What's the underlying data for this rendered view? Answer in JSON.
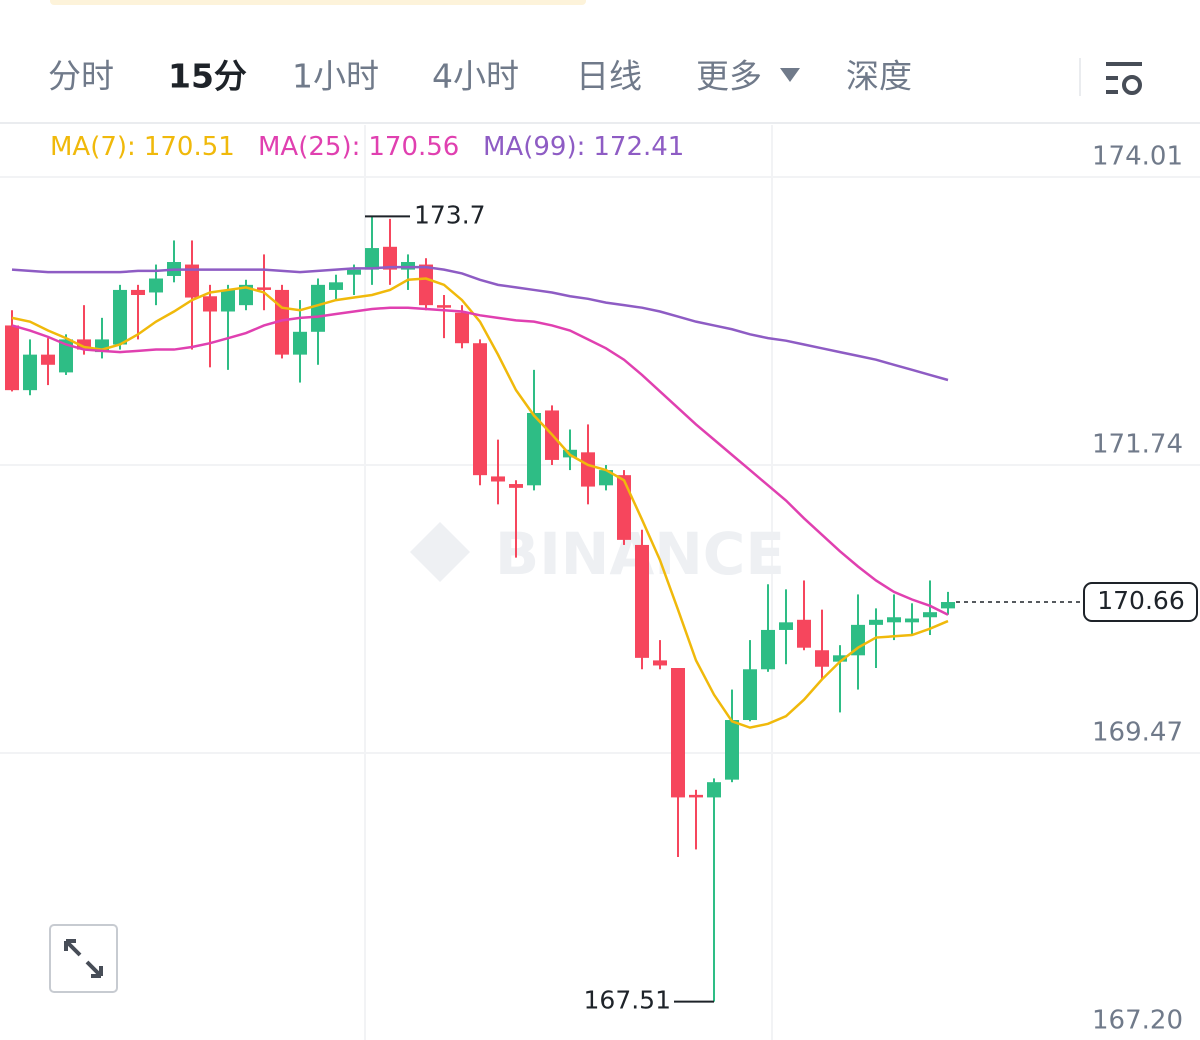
{
  "tabs": [
    "分时",
    "15分",
    "1小时",
    "4小时",
    "日线",
    "更多",
    "深度"
  ],
  "watermark": "BINANCE",
  "chart_data": {
    "type": "candlestick",
    "up_color": "#2ebd85",
    "down_color": "#f6465d",
    "ylim": [
      167.2,
      174.42
    ],
    "yticks": [
      174.01,
      171.74,
      169.47,
      {
        "value": 167.2,
        "label": "167.20"
      }
    ],
    "grid": true,
    "open": [
      172.84,
      172.33,
      172.61,
      172.47,
      172.73,
      172.63,
      172.69,
      173.12,
      173.1,
      173.23,
      173.32,
      173.07,
      172.95,
      173.0,
      173.14,
      173.12,
      172.61,
      172.79,
      173.12,
      173.24,
      173.28,
      173.46,
      173.28,
      173.32,
      173.0,
      172.94,
      172.7,
      171.65,
      171.59,
      171.58,
      172.17,
      171.8,
      171.84,
      171.58,
      171.66,
      171.11,
      170.2,
      170.14,
      169.14,
      169.12,
      169.26,
      169.73,
      170.13,
      170.44,
      170.52,
      170.28,
      170.19,
      170.24,
      170.48,
      170.5,
      170.5,
      170.54,
      170.61
    ],
    "high": [
      172.96,
      172.73,
      172.74,
      172.77,
      173.0,
      172.9,
      173.16,
      173.16,
      173.32,
      173.51,
      173.51,
      173.16,
      173.16,
      173.2,
      173.4,
      173.16,
      173.04,
      173.21,
      173.24,
      173.32,
      173.7,
      173.68,
      173.4,
      173.37,
      173.08,
      173.0,
      172.73,
      171.94,
      171.62,
      172.49,
      172.21,
      172.02,
      172.06,
      171.74,
      171.7,
      171.23,
      170.36,
      170.14,
      169.18,
      169.27,
      169.97,
      170.36,
      170.8,
      170.76,
      170.83,
      170.6,
      170.32,
      170.72,
      170.61,
      170.72,
      170.65,
      170.83,
      170.74
    ],
    "low": [
      172.32,
      172.29,
      172.37,
      172.45,
      172.61,
      172.58,
      172.65,
      172.73,
      173.0,
      173.18,
      172.65,
      172.51,
      172.49,
      172.96,
      172.96,
      172.58,
      172.39,
      172.53,
      173.04,
      173.08,
      173.16,
      173.16,
      173.12,
      172.96,
      172.74,
      172.66,
      171.58,
      171.43,
      171.01,
      171.54,
      171.74,
      171.7,
      171.43,
      171.54,
      171.11,
      170.13,
      170.13,
      168.65,
      168.71,
      167.51,
      169.24,
      169.72,
      170.11,
      170.17,
      170.28,
      170.05,
      169.79,
      169.97,
      170.14,
      170.36,
      170.4,
      170.4,
      170.56
    ],
    "close": [
      172.33,
      172.61,
      172.53,
      172.73,
      172.65,
      172.73,
      173.12,
      173.08,
      173.21,
      173.34,
      173.06,
      172.95,
      173.12,
      173.16,
      173.12,
      172.61,
      172.79,
      173.16,
      173.18,
      173.28,
      173.45,
      173.28,
      173.34,
      173.0,
      172.98,
      172.7,
      171.66,
      171.61,
      171.56,
      172.15,
      171.78,
      171.86,
      171.57,
      171.7,
      171.15,
      170.22,
      170.16,
      169.12,
      169.12,
      169.24,
      169.73,
      170.13,
      170.44,
      170.5,
      170.3,
      170.15,
      170.24,
      170.48,
      170.52,
      170.54,
      170.53,
      170.58,
      170.66
    ],
    "series": [
      {
        "name": "MA(7):",
        "color": "#f0b90b",
        "values": [
          172.9,
          172.87,
          172.8,
          172.74,
          172.67,
          172.65,
          172.69,
          172.77,
          172.87,
          172.95,
          173.04,
          173.1,
          173.12,
          173.14,
          173.1,
          172.98,
          172.96,
          173.0,
          173.04,
          173.06,
          173.08,
          173.12,
          173.2,
          173.21,
          173.16,
          173.04,
          172.87,
          172.61,
          172.33,
          172.13,
          171.98,
          171.82,
          171.74,
          171.7,
          171.62,
          171.31,
          170.99,
          170.6,
          170.2,
          169.93,
          169.72,
          169.67,
          169.7,
          169.76,
          169.89,
          170.05,
          170.19,
          170.3,
          170.38,
          170.39,
          170.4,
          170.45,
          170.51
        ]
      },
      {
        "name": "MA(25):",
        "color": "#e040b0",
        "values": [
          172.84,
          172.8,
          172.75,
          172.69,
          172.65,
          172.64,
          172.63,
          172.64,
          172.65,
          172.65,
          172.67,
          172.7,
          172.74,
          172.78,
          172.84,
          172.88,
          172.9,
          172.91,
          172.93,
          172.95,
          172.97,
          172.98,
          172.98,
          172.97,
          172.96,
          172.95,
          172.92,
          172.9,
          172.88,
          172.87,
          172.84,
          172.8,
          172.73,
          172.66,
          172.57,
          172.45,
          172.32,
          172.19,
          172.06,
          171.94,
          171.82,
          171.7,
          171.58,
          171.46,
          171.32,
          171.19,
          171.06,
          170.94,
          170.83,
          170.74,
          170.68,
          170.63,
          170.56
        ]
      },
      {
        "name": "MA(99):",
        "color": "#8e5cc4",
        "values": [
          173.28,
          173.27,
          173.26,
          173.26,
          173.26,
          173.26,
          173.26,
          173.27,
          173.27,
          173.28,
          173.28,
          173.28,
          173.28,
          173.28,
          173.28,
          173.27,
          173.26,
          173.27,
          173.28,
          173.29,
          173.29,
          173.3,
          173.3,
          173.3,
          173.28,
          173.25,
          173.2,
          173.16,
          173.14,
          173.12,
          173.1,
          173.07,
          173.05,
          173.02,
          173.0,
          172.98,
          172.95,
          172.91,
          172.87,
          172.84,
          172.81,
          172.77,
          172.74,
          172.72,
          172.69,
          172.66,
          172.63,
          172.6,
          172.57,
          172.53,
          172.49,
          172.45,
          172.41
        ]
      }
    ]
  }
}
